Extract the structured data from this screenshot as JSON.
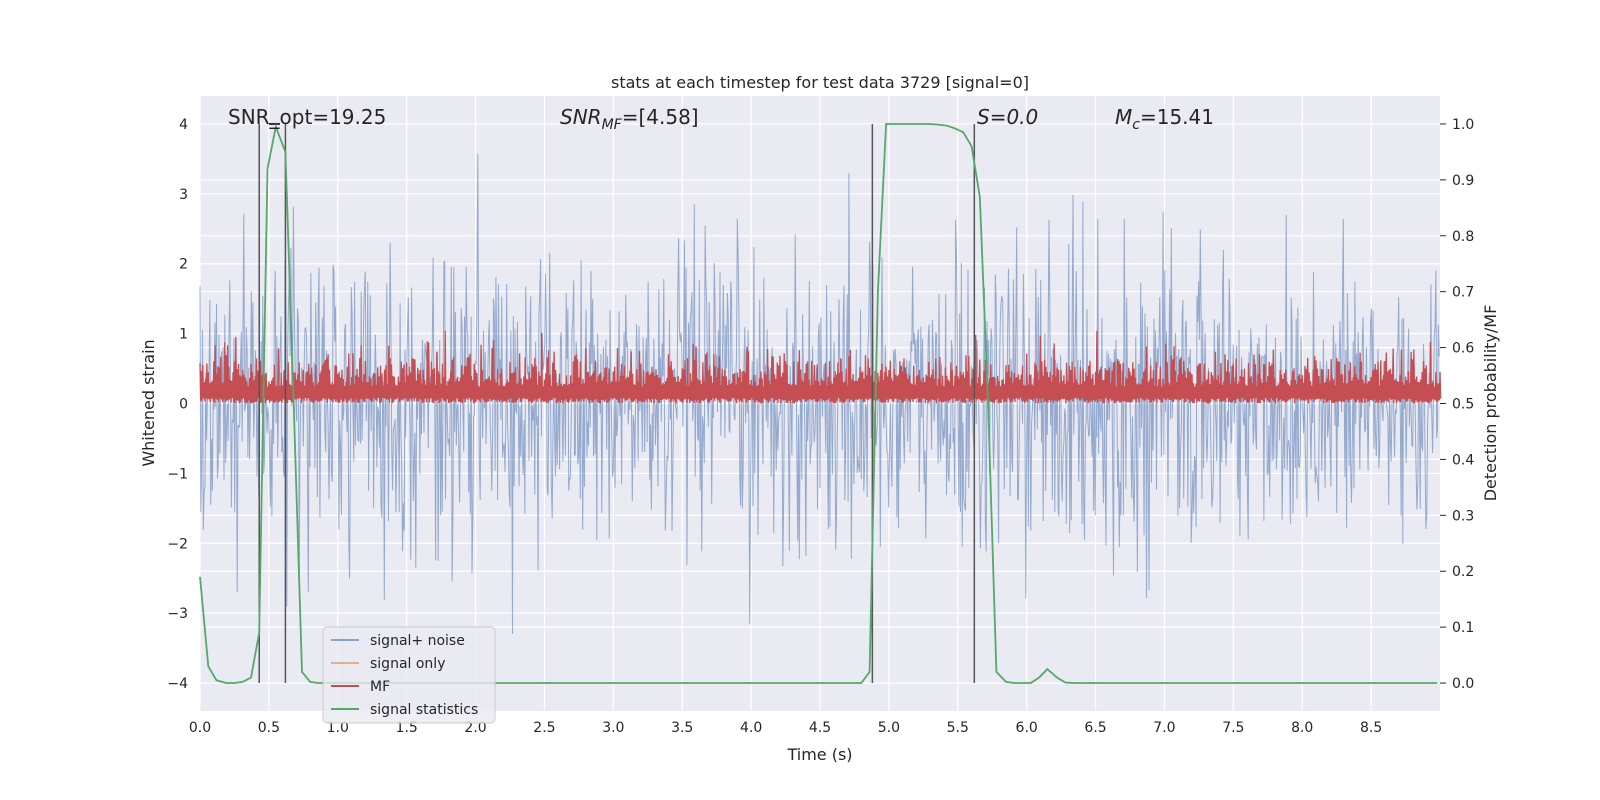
{
  "chart_data": {
    "type": "line",
    "title": "stats at each timestep for test data 3729 [signal=0]",
    "xlabel": "Time (s)",
    "ylabel": "Whitened strain",
    "ylabel_right": "Detection probability/MF",
    "xlim": [
      0.0,
      9.0
    ],
    "ylim": [
      -4.4,
      4.4
    ],
    "ylim_right": [
      -0.05,
      1.05
    ],
    "x_ticks": [
      "0.0",
      "0.5",
      "1.0",
      "1.5",
      "2.0",
      "2.5",
      "3.0",
      "3.5",
      "4.0",
      "4.5",
      "5.0",
      "5.5",
      "6.0",
      "6.5",
      "7.0",
      "7.5",
      "8.0",
      "8.5"
    ],
    "y_ticks": [
      "4",
      "3",
      "2",
      "1",
      "0",
      "−1",
      "−2",
      "−3",
      "−4"
    ],
    "y_ticks_right": [
      "1.0",
      "0.9",
      "0.8",
      "0.7",
      "0.6",
      "0.5",
      "0.4",
      "0.3",
      "0.2",
      "0.1",
      "0.0"
    ],
    "grid": true,
    "legend_placement": "lower-left",
    "annotations": {
      "snr_opt": "SNR_opt=19.25",
      "snr_mf_prefix": "SNR",
      "snr_mf_sub": "MF",
      "snr_mf_value": "=[4.58]",
      "s_value": "S=0.0",
      "mc_prefix": "M",
      "mc_sub": "c",
      "mc_value": "=15.41"
    },
    "vertical_lines_x": [
      0.43,
      0.62,
      4.88,
      5.62
    ],
    "series": [
      {
        "name": "signal+ noise",
        "color": "#4c72b0",
        "description_values": "noise, approx amplitude ±4"
      },
      {
        "name": "signal only",
        "color": "#dd8452",
        "values": []
      },
      {
        "name": "MF",
        "color": "#c44e52",
        "description_values": "matched filter output ~0.5–0.62 on right axis"
      },
      {
        "name": "signal statistics",
        "color": "#55a868",
        "x": [
          0.0,
          0.06,
          0.12,
          0.19,
          0.25,
          0.31,
          0.37,
          0.43,
          0.49,
          0.55,
          0.62,
          0.68,
          0.74,
          0.8,
          0.86,
          4.8,
          4.86,
          4.92,
          4.98,
          5.05,
          5.11,
          5.17,
          5.23,
          5.29,
          5.35,
          5.42,
          5.48,
          5.54,
          5.6,
          5.66,
          5.72,
          5.78,
          5.85,
          5.91,
          5.97,
          6.03,
          6.09,
          6.15,
          6.22,
          6.28,
          6.34,
          8.98
        ],
        "y": [
          0.19,
          0.03,
          0.005,
          0.0,
          0.0,
          0.002,
          0.01,
          0.09,
          0.92,
          0.995,
          0.95,
          0.5,
          0.02,
          0.002,
          0.0,
          0.0,
          0.02,
          0.7,
          1.0,
          1.0,
          1.0,
          1.0,
          1.0,
          1.0,
          0.999,
          0.997,
          0.992,
          0.985,
          0.96,
          0.87,
          0.5,
          0.02,
          0.002,
          0.0,
          0.0,
          0.0,
          0.01,
          0.025,
          0.01,
          0.001,
          0.0,
          0.0
        ]
      }
    ]
  }
}
